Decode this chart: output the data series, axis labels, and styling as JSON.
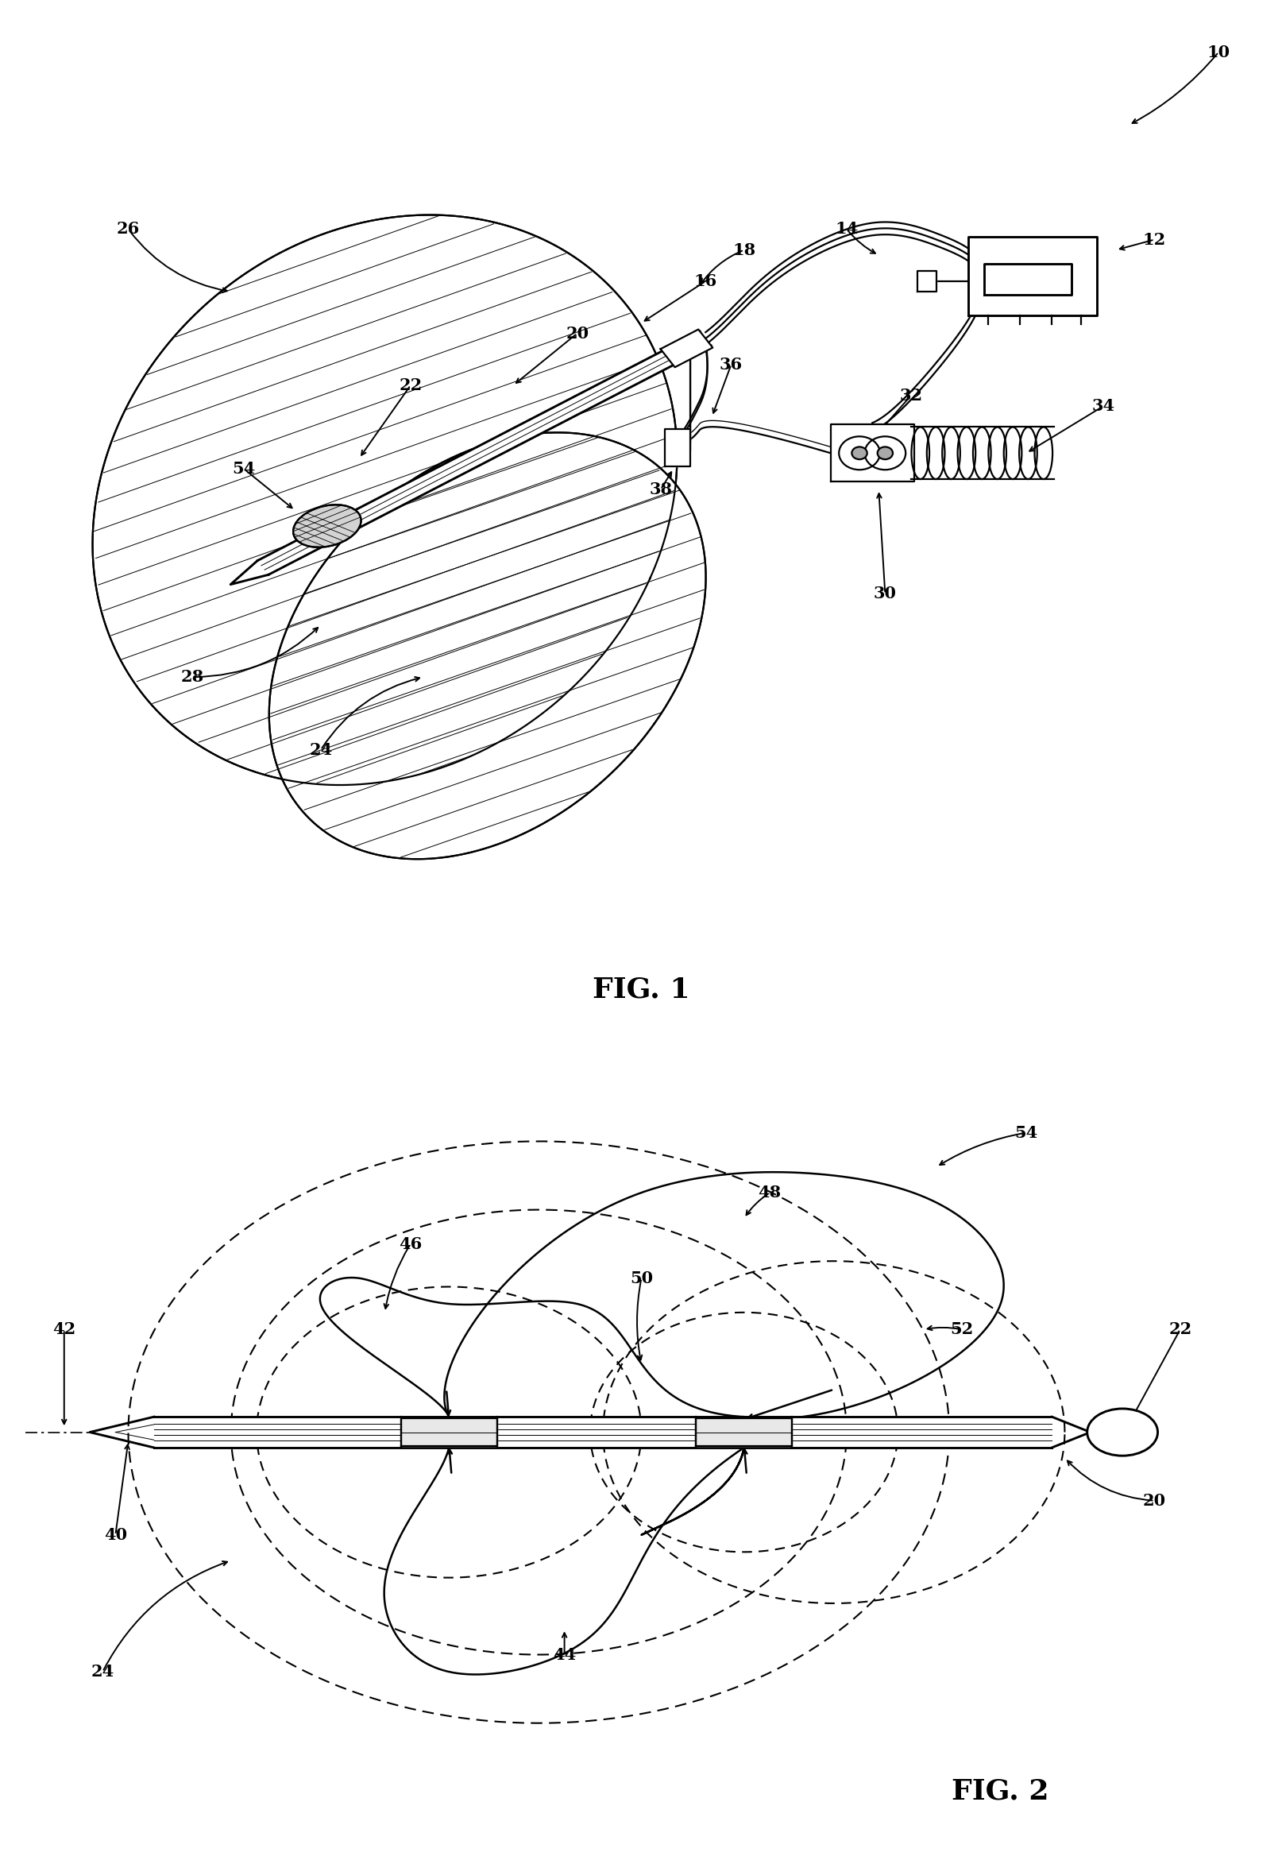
{
  "background_color": "#ffffff",
  "line_color": "#000000",
  "label_fontsize": 15,
  "title_fontsize": 22,
  "fig1_title": "FIG. 1",
  "fig2_title": "FIG. 2"
}
